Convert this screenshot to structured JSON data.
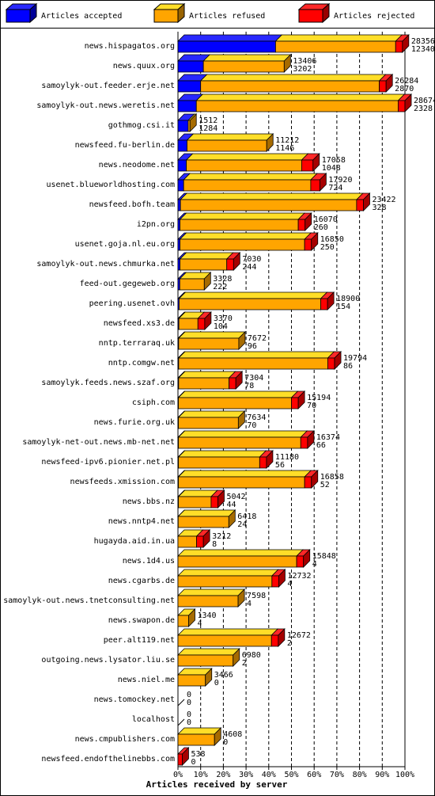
{
  "chart_data": {
    "type": "bar3d_stacked_horizontal",
    "xlabel": "Articles received by server",
    "categories": [
      "news.hispagatos.org",
      "news.quux.org",
      "samoylyk-out.feeder.erje.net",
      "samoylyk-out.news.weretis.net",
      "gothmog.csi.it",
      "newsfeed.fu-berlin.de",
      "news.neodome.net",
      "usenet.blueworldhosting.com",
      "newsfeed.bofh.team",
      "i2pn.org",
      "usenet.goja.nl.eu.org",
      "samoylyk-out.news.chmurka.net",
      "feed-out.gegeweb.org",
      "peering.usenet.ovh",
      "newsfeed.xs3.de",
      "nntp.terraraq.uk",
      "nntp.comgw.net",
      "samoylyk.feeds.news.szaf.org",
      "csiph.com",
      "news.furie.org.uk",
      "samoylyk-net-out.news.mb-net.net",
      "newsfeed-ipv6.pionier.net.pl",
      "newsfeeds.xmission.com",
      "news.bbs.nz",
      "news.nntp4.net",
      "hugayda.aid.in.ua",
      "news.1d4.us",
      "news.cgarbs.de",
      "samoylyk-out.news.tnetconsulting.net",
      "news.swapon.de",
      "peer.alt119.net",
      "outgoing.news.lysator.liu.se",
      "news.niel.me",
      "news.tomockey.net",
      "localhost",
      "news.cmpublishers.com",
      "newsfeed.endofthelinebbs.com"
    ],
    "series": [
      {
        "name": "Articles accepted",
        "color": "#0000ff",
        "values": [
          43.0,
          11.2,
          10.0,
          8.1,
          4.5,
          4.0,
          3.7,
          2.5,
          1.1,
          0.9,
          0.9,
          0.9,
          0.8,
          0.5,
          0.4,
          0.3,
          0.3,
          0.3,
          0.2,
          0.2,
          0.2,
          0.2,
          0.2,
          0.2,
          0.1,
          0,
          0,
          0,
          0,
          0,
          0,
          0,
          0,
          0,
          0,
          0,
          0
        ]
      },
      {
        "name": "Articles refused",
        "color": "#ffa500",
        "values": [
          52.9,
          35.6,
          78.7,
          88.9,
          0.8,
          35.1,
          50.8,
          56.0,
          77.6,
          52.1,
          54.9,
          20.6,
          10.8,
          62.4,
          8.4,
          26.5,
          65.7,
          22.2,
          49.8,
          26.4,
          53.9,
          35.8,
          55.6,
          14.4,
          22.3,
          8.2,
          52.3,
          41.4,
          26.5,
          4.7,
          41.2,
          24.3,
          12.1,
          0,
          0,
          16.1,
          0
        ]
      },
      {
        "name": "Articles rejected",
        "color": "#ff0000",
        "values": [
          3,
          0,
          3,
          3,
          0,
          0,
          5,
          4,
          3,
          3,
          3,
          3,
          0,
          3,
          3,
          0,
          3,
          3,
          3,
          0,
          3,
          3,
          3,
          3,
          0,
          3,
          3,
          3,
          0,
          0,
          3,
          0,
          0,
          0,
          0,
          0,
          1.9
        ]
      }
    ],
    "annotations": {
      "totals": [
        28356,
        13406,
        26284,
        28674,
        1512,
        11212,
        17058,
        17920,
        23422,
        16070,
        16850,
        7030,
        3328,
        18900,
        3370,
        7672,
        19794,
        7304,
        15194,
        7634,
        16374,
        11180,
        16858,
        5042,
        6418,
        3212,
        15848,
        12732,
        7598,
        1340,
        12672,
        6980,
        3466,
        0,
        0,
        4608,
        538
      ],
      "accepted": [
        12340,
        3202,
        2870,
        2328,
        1284,
        1146,
        1048,
        724,
        328,
        260,
        250,
        244,
        222,
        154,
        104,
        96,
        86,
        78,
        70,
        70,
        66,
        56,
        52,
        44,
        24,
        8,
        4,
        4,
        4,
        4,
        2,
        2,
        0,
        0,
        0,
        0,
        0
      ]
    },
    "xlim": [
      0,
      100
    ],
    "xticks": [
      {
        "value": 0,
        "label": "0%"
      },
      {
        "value": 10,
        "label": "10%"
      },
      {
        "value": 20,
        "label": "20%"
      },
      {
        "value": 30,
        "label": "30%"
      },
      {
        "value": 40,
        "label": "40%"
      },
      {
        "value": 50,
        "label": "50%"
      },
      {
        "value": 60,
        "label": "60%"
      },
      {
        "value": 70,
        "label": "70%"
      },
      {
        "value": 80,
        "label": "80%"
      },
      {
        "value": 90,
        "label": "90%"
      },
      {
        "value": 100,
        "label": "100%"
      }
    ],
    "grid": true
  }
}
